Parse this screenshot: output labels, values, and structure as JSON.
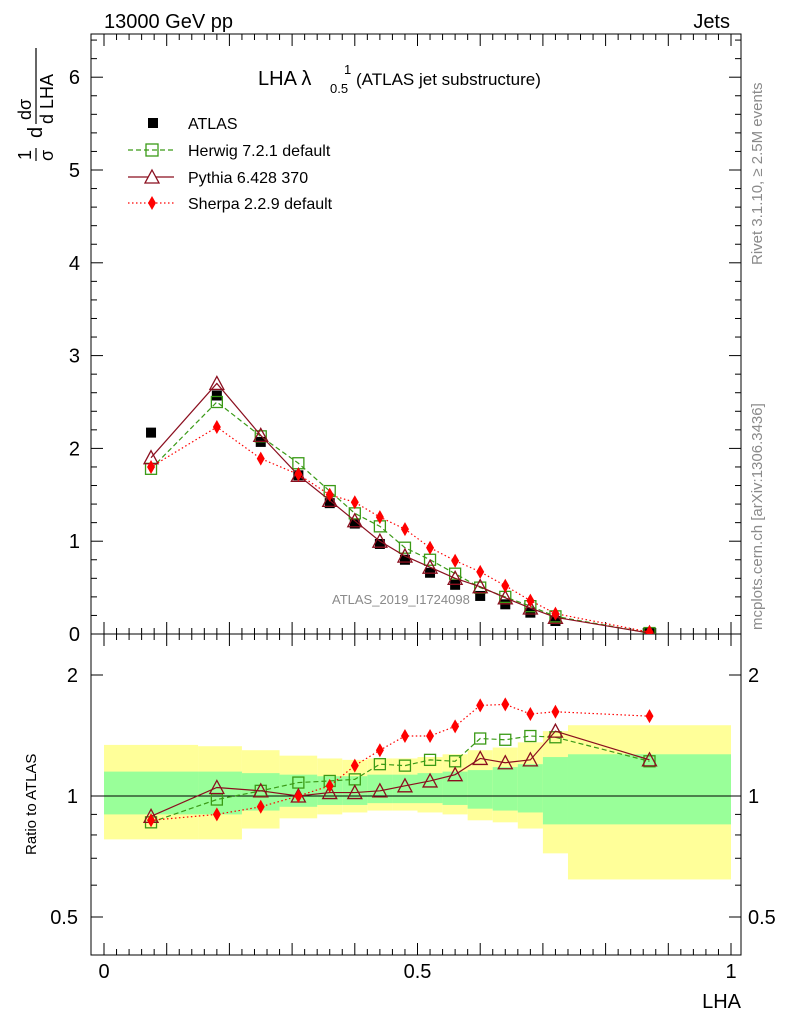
{
  "header": {
    "left": "13000 GeV pp",
    "right": "Jets"
  },
  "side_labels": {
    "rivet": "Rivet 3.1.10, ≥ 2.5M events",
    "mcplots": "mcplots.cern.ch [arXiv:1306.3436]"
  },
  "watermark": "ATLAS_2019_I1724098",
  "colors": {
    "atlas": "#000000",
    "herwig": "#3a9a16",
    "pythia": "#8b0f1f",
    "sherpa": "#ff0000",
    "band_inner": "#99ff99",
    "band_outer": "#ffff99"
  },
  "chart_data": [
    {
      "type": "line",
      "panel": "main",
      "title": "LHA λ",
      "title_sup": "1",
      "title_sub": "0.5",
      "title_suffix": "(ATLAS jet substructure)",
      "ylabel": "1/σ dσ/d LHA",
      "ylabel_parts": {
        "one": "1",
        "sigma": "σ",
        "d": "d",
        "dsigma": "dσ",
        "dlha": "d LHA"
      },
      "xlim": [
        0,
        1
      ],
      "ylim": [
        0,
        6.5
      ],
      "ytick_labels": [
        "0",
        "1",
        "2",
        "3",
        "4",
        "5",
        "6"
      ],
      "x": [
        0.075,
        0.18,
        0.25,
        0.31,
        0.36,
        0.4,
        0.44,
        0.48,
        0.52,
        0.56,
        0.6,
        0.64,
        0.68,
        0.72,
        0.87
      ],
      "legend": [
        "ATLAS",
        "Herwig 7.2.1 default",
        "Pythia 6.428 370",
        "Sherpa 2.2.9 default"
      ],
      "series": [
        {
          "name": "ATLAS",
          "values": [
            2.17,
            2.57,
            2.07,
            1.71,
            1.41,
            1.19,
            0.97,
            0.8,
            0.66,
            0.53,
            0.41,
            0.32,
            0.23,
            0.14,
            0.01
          ]
        },
        {
          "name": "Herwig 7.2.1 default",
          "values": [
            1.78,
            2.5,
            2.13,
            1.84,
            1.54,
            1.3,
            1.16,
            0.93,
            0.8,
            0.65,
            0.5,
            0.4,
            0.3,
            0.19,
            0.01
          ]
        },
        {
          "name": "Pythia 6.428 370",
          "values": [
            1.9,
            2.7,
            2.14,
            1.71,
            1.44,
            1.22,
            1.0,
            0.84,
            0.72,
            0.6,
            0.51,
            0.39,
            0.28,
            0.18,
            0.01
          ]
        },
        {
          "name": "Sherpa 2.2.9 default",
          "values": [
            1.8,
            2.23,
            1.89,
            1.72,
            1.5,
            1.42,
            1.26,
            1.13,
            0.93,
            0.79,
            0.67,
            0.52,
            0.36,
            0.22,
            0.02
          ]
        }
      ]
    },
    {
      "type": "line",
      "panel": "ratio",
      "ylabel": "Ratio to ATLAS",
      "xlabel": "LHA",
      "xlim": [
        0,
        1
      ],
      "ylim": [
        0.4,
        2.3
      ],
      "ytick_labels": [
        "0.5",
        "1",
        "2"
      ],
      "xtick_labels": [
        "0",
        "0.5",
        "1"
      ],
      "bins": [
        [
          0,
          0.15
        ],
        [
          0.15,
          0.22
        ],
        [
          0.22,
          0.28
        ],
        [
          0.28,
          0.34
        ],
        [
          0.34,
          0.38
        ],
        [
          0.38,
          0.42
        ],
        [
          0.42,
          0.46
        ],
        [
          0.46,
          0.5
        ],
        [
          0.5,
          0.54
        ],
        [
          0.54,
          0.58
        ],
        [
          0.58,
          0.62
        ],
        [
          0.62,
          0.66
        ],
        [
          0.66,
          0.7
        ],
        [
          0.7,
          0.74
        ],
        [
          0.74,
          1.0
        ]
      ],
      "band_inner": [
        [
          0.9,
          1.15
        ],
        [
          0.9,
          1.15
        ],
        [
          0.92,
          1.14
        ],
        [
          0.94,
          1.13
        ],
        [
          0.95,
          1.12
        ],
        [
          0.95,
          1.12
        ],
        [
          0.96,
          1.13
        ],
        [
          0.96,
          1.13
        ],
        [
          0.96,
          1.14
        ],
        [
          0.95,
          1.15
        ],
        [
          0.93,
          1.16
        ],
        [
          0.92,
          1.18
        ],
        [
          0.91,
          1.2
        ],
        [
          0.85,
          1.25
        ],
        [
          0.85,
          1.27
        ]
      ],
      "band_outer": [
        [
          0.78,
          1.34
        ],
        [
          0.78,
          1.33
        ],
        [
          0.83,
          1.3
        ],
        [
          0.88,
          1.26
        ],
        [
          0.9,
          1.24
        ],
        [
          0.91,
          1.23
        ],
        [
          0.92,
          1.24
        ],
        [
          0.92,
          1.24
        ],
        [
          0.91,
          1.25
        ],
        [
          0.9,
          1.27
        ],
        [
          0.87,
          1.3
        ],
        [
          0.86,
          1.32
        ],
        [
          0.83,
          1.36
        ],
        [
          0.72,
          1.45
        ],
        [
          0.62,
          1.5
        ]
      ],
      "x": [
        0.075,
        0.18,
        0.25,
        0.31,
        0.36,
        0.4,
        0.44,
        0.48,
        0.52,
        0.56,
        0.6,
        0.64,
        0.68,
        0.72,
        0.87
      ],
      "series": [
        {
          "name": "Herwig 7.2.1 default",
          "values": [
            0.86,
            0.98,
            1.03,
            1.08,
            1.09,
            1.1,
            1.2,
            1.19,
            1.23,
            1.22,
            1.39,
            1.38,
            1.41,
            1.4,
            1.22
          ]
        },
        {
          "name": "Pythia 6.428 370",
          "values": [
            0.89,
            1.05,
            1.03,
            1.0,
            1.02,
            1.02,
            1.03,
            1.06,
            1.09,
            1.13,
            1.24,
            1.21,
            1.23,
            1.45,
            1.23
          ]
        },
        {
          "name": "Sherpa 2.2.9 default",
          "values": [
            0.87,
            0.9,
            0.94,
            1.0,
            1.06,
            1.19,
            1.3,
            1.41,
            1.41,
            1.49,
            1.68,
            1.69,
            1.6,
            1.62,
            1.58
          ]
        }
      ]
    }
  ]
}
